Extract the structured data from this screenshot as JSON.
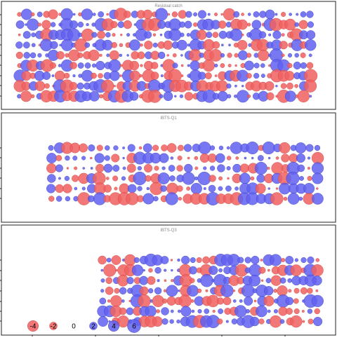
{
  "chart_data": {
    "type": "scatter",
    "encoding": "bubble residual plot; circle area proportional to |residual|, red = negative, blue = positive",
    "colors": {
      "negative": "#f06060",
      "positive": "#6060f0",
      "outline_negative": "#d04040",
      "outline_positive": "#4040c0"
    },
    "panels": [
      {
        "title": "Residual catch",
        "n_rows": 9,
        "n_cols": 44,
        "col_start": 0,
        "seed": 11
      },
      {
        "title": "IBTS-Q1",
        "n_rows": 6,
        "n_cols": 34,
        "col_start": 0,
        "seed": 23
      },
      {
        "title": "IBTS-Q3",
        "n_rows": 7,
        "n_cols": 32,
        "col_start": 0,
        "seed": 37
      }
    ],
    "legend": {
      "placement": "bottom-left",
      "values": [
        -4,
        -2,
        0,
        2,
        4,
        6
      ],
      "labels": [
        "-4",
        "-2",
        "0",
        "2",
        "4",
        "6"
      ]
    }
  }
}
